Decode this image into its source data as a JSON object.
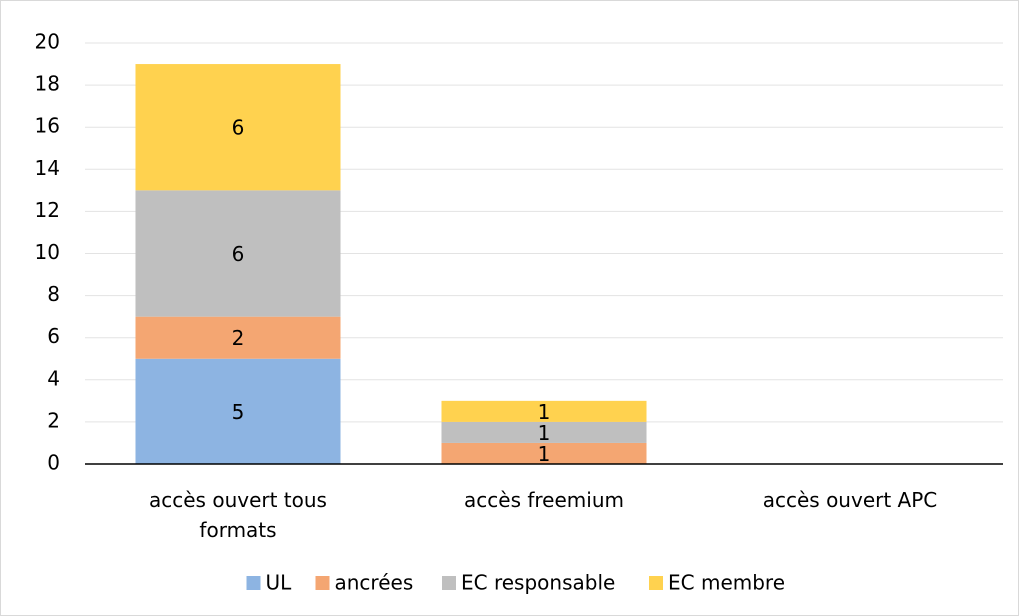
{
  "chart_data": {
    "type": "stacked_bar",
    "categories": [
      "accès ouvert tous formats",
      "accès freemium",
      "accès ouvert APC"
    ],
    "series": [
      {
        "name": "UL",
        "color": "#8db4e2",
        "values": [
          5,
          0,
          0
        ]
      },
      {
        "name": "ancrées",
        "color": "#f4a672",
        "values": [
          2,
          1,
          0
        ]
      },
      {
        "name": "EC responsable",
        "color": "#bfbfbf",
        "values": [
          6,
          1,
          0
        ]
      },
      {
        "name": "EC membre",
        "color": "#ffd24f",
        "values": [
          6,
          1,
          0
        ]
      }
    ],
    "ylim": [
      0,
      20
    ],
    "yticks": [
      0,
      2,
      4,
      6,
      8,
      10,
      12,
      14,
      16,
      18,
      20
    ],
    "grid": true,
    "legend": "bottom"
  }
}
